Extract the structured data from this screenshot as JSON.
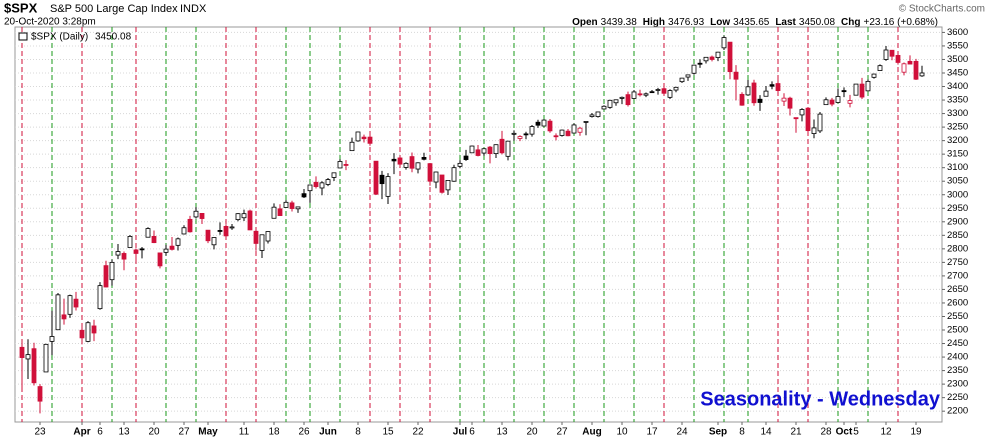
{
  "chart_data": {
    "type": "candlestick",
    "symbol": "$SPX",
    "name": "S&P 500 Large Cap Index",
    "exchange": "INDX",
    "date": "20-Oct-2020 3:28pm",
    "quote": [
      {
        "label": "Open",
        "value": "3439.38"
      },
      {
        "label": "High",
        "value": "3476.93"
      },
      {
        "label": "Low",
        "value": "3435.65"
      },
      {
        "label": "Last",
        "value": "3450.08"
      },
      {
        "label": "Chg",
        "value": "+23.16 (+0.68%)"
      }
    ],
    "copyright": "© StockCharts.com",
    "series_name": "$SPX (Daily)",
    "legend_value": "3450.08",
    "annotation": "Seasonality - Wednesday",
    "categories": [
      null,
      null,
      null,
      "23",
      null,
      null,
      null,
      null,
      null,
      null,
      "Apr",
      null,
      null,
      "6",
      null,
      null,
      null,
      "13",
      null,
      null,
      null,
      null,
      "20",
      null,
      null,
      null,
      null,
      "27",
      null,
      null,
      null,
      "May",
      null,
      null,
      null,
      null,
      null,
      "11",
      null,
      null,
      null,
      null,
      "18",
      null,
      null,
      null,
      null,
      "26",
      null,
      null,
      null,
      "Jun",
      null,
      null,
      null,
      null,
      "8",
      null,
      null,
      null,
      null,
      "15",
      null,
      null,
      null,
      null,
      "22",
      null,
      null,
      null,
      null,
      null,
      null,
      "Jul",
      null,
      "6",
      null,
      null,
      null,
      null,
      "13",
      null,
      null,
      null,
      null,
      "20",
      null,
      null,
      null,
      null,
      "27",
      null,
      null,
      null,
      null,
      "Aug",
      null,
      null,
      null,
      null,
      "10",
      null,
      null,
      null,
      null,
      "17",
      null,
      null,
      null,
      null,
      "24",
      null,
      null,
      null,
      null,
      null,
      "Sep",
      null,
      null,
      null,
      "8",
      null,
      null,
      null,
      "14",
      null,
      null,
      null,
      null,
      "21",
      null,
      null,
      null,
      null,
      "28",
      null,
      null,
      "Oct",
      null,
      "5",
      null,
      null,
      null,
      null,
      "12",
      null,
      null,
      null,
      null,
      "19",
      null
    ],
    "open": [
      2436,
      2393,
      2431,
      2291,
      2345,
      2458,
      2501,
      2556,
      2558,
      2614,
      2499,
      2458,
      2515,
      2579,
      2738,
      2686,
      2777,
      2783,
      2805,
      2796,
      2800,
      2843,
      2846,
      2785,
      2787,
      2810,
      2813,
      2855,
      2909,
      2918,
      2931,
      2869,
      2815,
      2868,
      2883,
      2879,
      2908,
      2915,
      2940,
      2865,
      2794,
      2829,
      2913,
      2948,
      2953,
      2970,
      2948,
      3004,
      3015,
      3046,
      3025,
      3038,
      3064,
      3099,
      3112,
      3163,
      3199,
      3213,
      3213,
      3124,
      3072,
      2994,
      3131,
      3136,
      3101,
      3141,
      3095,
      3138,
      3115,
      3047,
      3073,
      3018,
      3050,
      3105,
      3143,
      3155,
      3166,
      3154,
      3176,
      3152,
      3205,
      3142,
      3225,
      3208,
      3225,
      3224,
      3268,
      3254,
      3272,
      3218,
      3219,
      3235,
      3228,
      3231,
      3270,
      3289,
      3289,
      3317,
      3323,
      3340,
      3356,
      3370,
      3356,
      3373,
      3368,
      3381,
      3388,
      3392,
      3360,
      3387,
      3418,
      3435,
      3449,
      3486,
      3495,
      3509,
      3507,
      3543,
      3564,
      3453,
      3371,
      3369,
      3413,
      3353,
      3364,
      3407,
      3411,
      3346,
      3357,
      3285,
      3295,
      3320,
      3226,
      3236,
      3333,
      3350,
      3341,
      3385,
      3338,
      3368,
      3409,
      3384,
      3434,
      3459,
      3500,
      3534,
      3515,
      3453,
      3493,
      3493,
      3439.38
    ],
    "high": [
      2453,
      2466,
      2453,
      2300,
      2449,
      2571,
      2637,
      2616,
      2631,
      2641,
      2522,
      2533,
      2538,
      2677,
      2756,
      2760,
      2818,
      2790,
      2851,
      2801,
      2807,
      2880,
      2868,
      2785,
      2815,
      2844,
      2842,
      2887,
      2922,
      2954,
      2931,
      2869,
      2844,
      2898,
      2891,
      2892,
      2932,
      2945,
      2945,
      2874,
      2852,
      2865,
      2968,
      2965,
      2980,
      2978,
      2956,
      3021,
      3036,
      3068,
      3050,
      3062,
      3081,
      3131,
      3128,
      3211,
      3233,
      3222,
      3223,
      3124,
      3088,
      3080,
      3154,
      3141,
      3120,
      3156,
      3120,
      3155,
      3115,
      3086,
      3073,
      3053,
      3111,
      3128,
      3166,
      3182,
      3184,
      3172,
      3180,
      3186,
      3236,
      3199,
      3238,
      3220,
      3233,
      3258,
      3277,
      3279,
      3280,
      3227,
      3241,
      3243,
      3264,
      3251,
      3272,
      3302,
      3306,
      3331,
      3351,
      3352,
      3363,
      3381,
      3387,
      3388,
      3378,
      3387,
      3395,
      3399,
      3390,
      3399,
      3432,
      3444,
      3481,
      3501,
      3509,
      3514,
      3528,
      3588,
      3564,
      3479,
      3379,
      3424,
      3425,
      3368,
      3402,
      3419,
      3428,
      3375,
      3362,
      3285,
      3320,
      3323,
      3278,
      3306,
      3360,
      3358,
      3393,
      3397,
      3369,
      3409,
      3432,
      3426,
      3447,
      3482,
      3550,
      3534,
      3527,
      3489,
      3515,
      3502,
      3476.93
    ],
    "low": [
      2281,
      2319,
      2295,
      2192,
      2345,
      2407,
      2501,
      2520,
      2545,
      2572,
      2447,
      2455,
      2459,
      2575,
      2657,
      2664,
      2762,
      2721,
      2805,
      2761,
      2765,
      2842,
      2821,
      2728,
      2775,
      2794,
      2794,
      2853,
      2860,
      2912,
      2892,
      2821,
      2798,
      2852,
      2847,
      2870,
      2902,
      2903,
      2869,
      2793,
      2766,
      2820,
      2913,
      2922,
      2953,
      2938,
      2933,
      2988,
      2970,
      3023,
      2998,
      3032,
      3051,
      3098,
      3091,
      3163,
      3196,
      3193,
      3181,
      2999,
      2984,
      2966,
      3076,
      3108,
      3093,
      3083,
      3079,
      3127,
      3033,
      3024,
      3004,
      2999,
      3048,
      3098,
      3125,
      3155,
      3142,
      3144,
      3116,
      3136,
      3149,
      3127,
      3200,
      3198,
      3205,
      3215,
      3247,
      3252,
      3229,
      3201,
      3215,
      3216,
      3228,
      3218,
      3220,
      3285,
      3285,
      3317,
      3318,
      3329,
      3335,
      3326,
      3355,
      3363,
      3361,
      3379,
      3370,
      3369,
      3354,
      3379,
      3413,
      3421,
      3444,
      3469,
      3485,
      3493,
      3494,
      3535,
      3427,
      3349,
      3329,
      3367,
      3329,
      3310,
      3364,
      3390,
      3384,
      3328,
      3293,
      3229,
      3271,
      3232,
      3209,
      3228,
      3333,
      3327,
      3340,
      3361,
      3323,
      3368,
      3354,
      3384,
      3429,
      3458,
      3495,
      3497,
      3481,
      3441,
      3483,
      3424,
      3435.65
    ],
    "close": [
      2398,
      2409,
      2305,
      2237,
      2447,
      2476,
      2630,
      2541,
      2627,
      2585,
      2471,
      2527,
      2489,
      2664,
      2659,
      2750,
      2790,
      2762,
      2846,
      2783,
      2800,
      2875,
      2823,
      2737,
      2799,
      2798,
      2837,
      2878,
      2863,
      2939,
      2912,
      2830,
      2842,
      2868,
      2848,
      2881,
      2930,
      2930,
      2870,
      2820,
      2852,
      2864,
      2954,
      2923,
      2972,
      2949,
      2955,
      2992,
      3036,
      3030,
      3044,
      3056,
      3081,
      3123,
      3112,
      3194,
      3232,
      3207,
      3190,
      3002,
      3041,
      3067,
      3125,
      3113,
      3116,
      3098,
      3118,
      3131,
      3050,
      3084,
      3009,
      3053,
      3100,
      3116,
      3130,
      3180,
      3145,
      3170,
      3152,
      3185,
      3155,
      3198,
      3227,
      3215,
      3225,
      3252,
      3257,
      3276,
      3236,
      3216,
      3239,
      3218,
      3258,
      3246,
      3271,
      3295,
      3306,
      3327,
      3349,
      3351,
      3360,
      3333,
      3380,
      3373,
      3373,
      3381,
      3389,
      3375,
      3385,
      3397,
      3431,
      3443,
      3479,
      3484,
      3508,
      3500,
      3527,
      3581,
      3455,
      3427,
      3331,
      3399,
      3340,
      3341,
      3383,
      3401,
      3385,
      3357,
      3320,
      3281,
      3315,
      3237,
      3247,
      3298,
      3351,
      3335,
      3363,
      3381,
      3348,
      3409,
      3361,
      3419,
      3446,
      3477,
      3535,
      3512,
      3489,
      3484,
      3483,
      3427,
      3450.08
    ],
    "up_color": "#000000",
    "down_color": "#d0103a",
    "wednesdays": [
      0,
      5,
      10,
      15,
      19,
      24,
      29,
      34,
      39,
      44,
      48,
      53,
      58,
      63,
      68,
      73,
      77,
      82,
      87,
      92,
      97,
      102,
      107,
      112,
      117,
      121,
      126,
      131,
      136,
      141,
      146
    ],
    "wednesday_up_color": "#1a9a1a",
    "wednesday_down_color": "#d0103a",
    "ylim": [
      2160,
      3620
    ],
    "yticks": [
      2200,
      2250,
      2300,
      2350,
      2400,
      2450,
      2500,
      2550,
      2600,
      2650,
      2700,
      2750,
      2800,
      2850,
      2900,
      2950,
      3000,
      3050,
      3100,
      3150,
      3200,
      3250,
      3300,
      3350,
      3400,
      3450,
      3500,
      3550,
      3600
    ],
    "grid": true
  }
}
